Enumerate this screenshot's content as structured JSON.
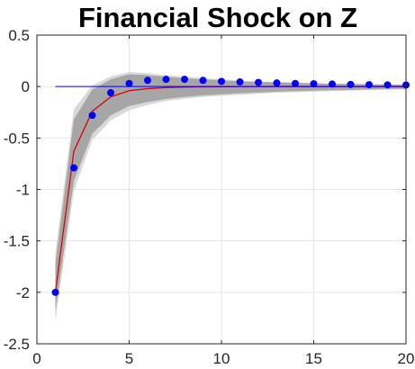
{
  "chart_data": {
    "type": "line",
    "title": "Financial Shock on Z",
    "xlabel": "",
    "ylabel": "",
    "xlim": [
      0,
      20
    ],
    "ylim": [
      -2.5,
      0.5
    ],
    "xticks": [
      0,
      5,
      10,
      15,
      20
    ],
    "yticks": [
      0.5,
      0,
      -0.5,
      -1,
      -1.5,
      -2,
      -2.5
    ],
    "xtick_labels": [
      "0",
      "5",
      "10",
      "15",
      "20"
    ],
    "ytick_labels": [
      "0.5",
      "0",
      "-0.5",
      "-1",
      "-1.5",
      "-2",
      "-2.5"
    ],
    "grid": true,
    "x": [
      1,
      2,
      3,
      4,
      5,
      6,
      7,
      8,
      9,
      10,
      11,
      12,
      13,
      14,
      15,
      16,
      17,
      18,
      19,
      20
    ],
    "bands": [
      {
        "name": "outer",
        "color": "#d9d9d9",
        "upper": [
          -1.62,
          -0.22,
          0.01,
          0.1,
          0.14,
          0.13,
          0.11,
          0.1,
          0.08,
          0.07,
          0.06,
          0.05,
          0.045,
          0.04,
          0.035,
          0.03,
          0.028,
          0.025,
          0.022,
          0.02
        ],
        "lower": [
          -2.28,
          -1.02,
          -0.52,
          -0.33,
          -0.23,
          -0.18,
          -0.14,
          -0.12,
          -0.1,
          -0.09,
          -0.08,
          -0.07,
          -0.06,
          -0.055,
          -0.05,
          -0.045,
          -0.04,
          -0.035,
          -0.03,
          -0.03
        ]
      },
      {
        "name": "inner",
        "color": "#a6a6a6",
        "upper": [
          -1.72,
          -0.32,
          -0.03,
          0.07,
          0.12,
          0.11,
          0.095,
          0.08,
          0.07,
          0.06,
          0.05,
          0.045,
          0.04,
          0.035,
          0.03,
          0.027,
          0.024,
          0.021,
          0.019,
          0.017
        ],
        "lower": [
          -2.18,
          -0.92,
          -0.46,
          -0.28,
          -0.19,
          -0.15,
          -0.12,
          -0.1,
          -0.085,
          -0.075,
          -0.065,
          -0.058,
          -0.05,
          -0.045,
          -0.04,
          -0.036,
          -0.032,
          -0.028,
          -0.025,
          -0.022
        ]
      }
    ],
    "series": [
      {
        "color": "#e00000",
        "style": "line",
        "values": [
          -2.0,
          -0.63,
          -0.24,
          -0.1,
          -0.04,
          -0.02,
          -0.01,
          -0.005,
          -0.003,
          -0.002,
          -0.001,
          -0.001,
          0,
          0,
          0,
          0,
          0,
          0,
          0,
          0
        ]
      },
      {
        "color": "#0000ff",
        "style": "markers",
        "values": [
          -2.0,
          -0.79,
          -0.28,
          -0.06,
          0.03,
          0.06,
          0.07,
          0.07,
          0.06,
          0.05,
          0.045,
          0.04,
          0.035,
          0.03,
          0.027,
          0.024,
          0.02,
          0.018,
          0.016,
          0.015
        ]
      },
      {
        "color": "#0000ff",
        "style": "zero-line",
        "x": [
          1,
          20
        ],
        "values": [
          0,
          0
        ]
      }
    ]
  }
}
